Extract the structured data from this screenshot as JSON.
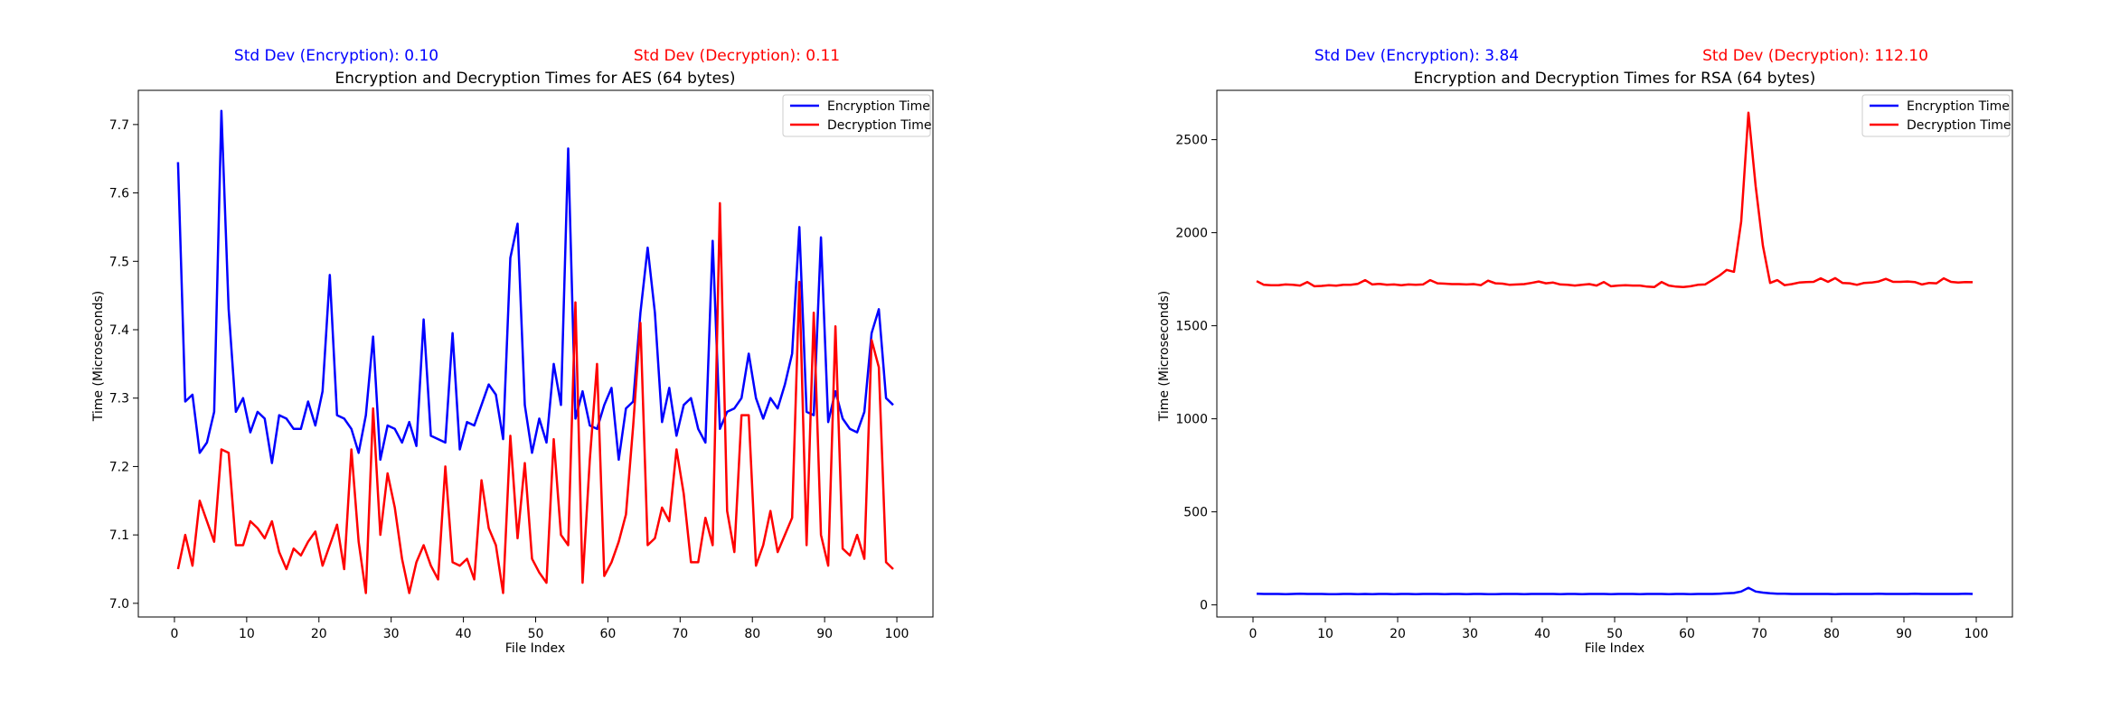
{
  "chart_data": [
    {
      "type": "line",
      "title": "Encryption and Decryption Times for AES (64 bytes)",
      "std_encryption": "Std Dev (Encryption): 0.10",
      "std_decryption": "Std Dev (Decryption): 0.11",
      "xlabel": "File Index",
      "ylabel": "Time (Microseconds)",
      "xlim": [
        -5,
        105
      ],
      "ylim": [
        6.98,
        7.75
      ],
      "xticks": [
        0,
        10,
        20,
        30,
        40,
        50,
        60,
        70,
        80,
        90,
        100
      ],
      "yticks": [
        7.0,
        7.1,
        7.2,
        7.3,
        7.4,
        7.5,
        7.6,
        7.7
      ],
      "ytick_decimals": 1,
      "legend": "upper right",
      "series": [
        {
          "name": "Encryption Time",
          "color": "#0000ff",
          "x": [
            0.5,
            1.5,
            2.5,
            3.5,
            4.5,
            5.5,
            6.5,
            7.5,
            8.5,
            9.5,
            10.5,
            11.5,
            12.5,
            13.5,
            14.5,
            15.5,
            16.5,
            17.5,
            18.5,
            19.5,
            20.5,
            21.5,
            22.5,
            23.5,
            24.5,
            25.5,
            26.5,
            27.5,
            28.5,
            29.5,
            30.5,
            31.5,
            32.5,
            33.5,
            34.5,
            35.5,
            36.5,
            37.5,
            38.5,
            39.5,
            40.5,
            41.5,
            42.5,
            43.5,
            44.5,
            45.5,
            46.5,
            47.5,
            48.5,
            49.5,
            50.5,
            51.5,
            52.5,
            53.5,
            54.5,
            55.5,
            56.5,
            57.5,
            58.5,
            59.5,
            60.5,
            61.5,
            62.5,
            63.5,
            64.5,
            65.5,
            66.5,
            67.5,
            68.5,
            69.5,
            70.5,
            71.5,
            72.5,
            73.5,
            74.5,
            75.5,
            76.5,
            77.5,
            78.5,
            79.5,
            80.5,
            81.5,
            82.5,
            83.5,
            84.5,
            85.5,
            86.5,
            87.5,
            88.5,
            89.5,
            90.5,
            91.5,
            92.5,
            93.5,
            94.5,
            95.5,
            96.5,
            97.5,
            98.5,
            99.5
          ],
          "values": [
            7.645,
            7.295,
            7.305,
            7.22,
            7.235,
            7.28,
            7.72,
            7.43,
            7.28,
            7.3,
            7.25,
            7.28,
            7.27,
            7.205,
            7.275,
            7.27,
            7.255,
            7.255,
            7.295,
            7.26,
            7.31,
            7.48,
            7.275,
            7.27,
            7.255,
            7.22,
            7.275,
            7.39,
            7.21,
            7.26,
            7.255,
            7.235,
            7.265,
            7.23,
            7.415,
            7.245,
            7.24,
            7.235,
            7.395,
            7.225,
            7.265,
            7.26,
            7.29,
            7.32,
            7.305,
            7.24,
            7.505,
            7.555,
            7.29,
            7.22,
            7.27,
            7.235,
            7.35,
            7.29,
            7.665,
            7.27,
            7.31,
            7.26,
            7.255,
            7.29,
            7.315,
            7.21,
            7.285,
            7.295,
            7.425,
            7.52,
            7.425,
            7.265,
            7.315,
            7.245,
            7.29,
            7.3,
            7.255,
            7.235,
            7.53,
            7.255,
            7.28,
            7.285,
            7.3,
            7.365,
            7.3,
            7.27,
            7.3,
            7.285,
            7.32,
            7.365,
            7.55,
            7.28,
            7.275,
            7.535,
            7.265,
            7.31,
            7.27,
            7.255,
            7.25,
            7.28,
            7.395,
            7.43,
            7.3,
            7.29
          ]
        },
        {
          "name": "Decryption Time",
          "color": "#ff0000",
          "x": [
            0.5,
            1.5,
            2.5,
            3.5,
            4.5,
            5.5,
            6.5,
            7.5,
            8.5,
            9.5,
            10.5,
            11.5,
            12.5,
            13.5,
            14.5,
            15.5,
            16.5,
            17.5,
            18.5,
            19.5,
            20.5,
            21.5,
            22.5,
            23.5,
            24.5,
            25.5,
            26.5,
            27.5,
            28.5,
            29.5,
            30.5,
            31.5,
            32.5,
            33.5,
            34.5,
            35.5,
            36.5,
            37.5,
            38.5,
            39.5,
            40.5,
            41.5,
            42.5,
            43.5,
            44.5,
            45.5,
            46.5,
            47.5,
            48.5,
            49.5,
            50.5,
            51.5,
            52.5,
            53.5,
            54.5,
            55.5,
            56.5,
            57.5,
            58.5,
            59.5,
            60.5,
            61.5,
            62.5,
            63.5,
            64.5,
            65.5,
            66.5,
            67.5,
            68.5,
            69.5,
            70.5,
            71.5,
            72.5,
            73.5,
            74.5,
            75.5,
            76.5,
            77.5,
            78.5,
            79.5,
            80.5,
            81.5,
            82.5,
            83.5,
            84.5,
            85.5,
            86.5,
            87.5,
            88.5,
            89.5,
            90.5,
            91.5,
            92.5,
            93.5,
            94.5,
            95.5,
            96.5,
            97.5,
            98.5,
            99.5
          ],
          "values": [
            7.05,
            7.1,
            7.055,
            7.15,
            7.12,
            7.09,
            7.225,
            7.22,
            7.085,
            7.085,
            7.12,
            7.11,
            7.095,
            7.12,
            7.075,
            7.05,
            7.08,
            7.07,
            7.09,
            7.105,
            7.055,
            7.085,
            7.115,
            7.05,
            7.225,
            7.09,
            7.015,
            7.285,
            7.1,
            7.19,
            7.14,
            7.065,
            7.015,
            7.06,
            7.085,
            7.055,
            7.035,
            7.2,
            7.06,
            7.055,
            7.065,
            7.035,
            7.18,
            7.11,
            7.085,
            7.015,
            7.245,
            7.095,
            7.205,
            7.065,
            7.045,
            7.03,
            7.24,
            7.1,
            7.085,
            7.44,
            7.03,
            7.21,
            7.35,
            7.04,
            7.06,
            7.09,
            7.13,
            7.26,
            7.41,
            7.085,
            7.095,
            7.14,
            7.12,
            7.225,
            7.16,
            7.06,
            7.06,
            7.125,
            7.085,
            7.585,
            7.135,
            7.075,
            7.275,
            7.275,
            7.055,
            7.085,
            7.135,
            7.075,
            7.1,
            7.125,
            7.47,
            7.085,
            7.425,
            7.1,
            7.055,
            7.405,
            7.08,
            7.07,
            7.1,
            7.065,
            7.385,
            7.345,
            7.06,
            7.05
          ]
        }
      ]
    },
    {
      "type": "line",
      "title": "Encryption and Decryption Times for RSA (64 bytes)",
      "std_encryption": "Std Dev (Encryption): 3.84",
      "std_decryption": "Std Dev (Decryption): 112.10",
      "xlabel": "File Index",
      "ylabel": "Time (Microseconds)",
      "xlim": [
        -5,
        105
      ],
      "ylim": [
        -65,
        2765
      ],
      "xticks": [
        0,
        10,
        20,
        30,
        40,
        50,
        60,
        70,
        80,
        90,
        100
      ],
      "yticks": [
        0,
        500,
        1000,
        1500,
        2000,
        2500
      ],
      "ytick_decimals": 0,
      "legend": "upper right",
      "series": [
        {
          "name": "Encryption Time",
          "color": "#0000ff",
          "x": [
            0.5,
            1.5,
            2.5,
            3.5,
            4.5,
            5.5,
            6.5,
            7.5,
            8.5,
            9.5,
            10.5,
            11.5,
            12.5,
            13.5,
            14.5,
            15.5,
            16.5,
            17.5,
            18.5,
            19.5,
            20.5,
            21.5,
            22.5,
            23.5,
            24.5,
            25.5,
            26.5,
            27.5,
            28.5,
            29.5,
            30.5,
            31.5,
            32.5,
            33.5,
            34.5,
            35.5,
            36.5,
            37.5,
            38.5,
            39.5,
            40.5,
            41.5,
            42.5,
            43.5,
            44.5,
            45.5,
            46.5,
            47.5,
            48.5,
            49.5,
            50.5,
            51.5,
            52.5,
            53.5,
            54.5,
            55.5,
            56.5,
            57.5,
            58.5,
            59.5,
            60.5,
            61.5,
            62.5,
            63.5,
            64.5,
            65.5,
            66.5,
            67.5,
            68.5,
            69.5,
            70.5,
            71.5,
            72.5,
            73.5,
            74.5,
            75.5,
            76.5,
            77.5,
            78.5,
            79.5,
            80.5,
            81.5,
            82.5,
            83.5,
            84.5,
            85.5,
            86.5,
            87.5,
            88.5,
            89.5,
            90.5,
            91.5,
            92.5,
            93.5,
            94.5,
            95.5,
            96.5,
            97.5,
            98.5,
            99.5
          ],
          "values": [
            60,
            59,
            59,
            59,
            58,
            59,
            60,
            59,
            59,
            59,
            58,
            58,
            59,
            59,
            58,
            59,
            58,
            59,
            59,
            58,
            59,
            59,
            58,
            59,
            59,
            59,
            58,
            59,
            59,
            58,
            59,
            59,
            58,
            58,
            59,
            59,
            59,
            58,
            59,
            59,
            59,
            59,
            58,
            59,
            59,
            58,
            59,
            59,
            59,
            58,
            59,
            59,
            59,
            58,
            59,
            59,
            59,
            58,
            59,
            59,
            58,
            59,
            59,
            59,
            60,
            62,
            64,
            72,
            92,
            72,
            66,
            62,
            60,
            60,
            59,
            59,
            59,
            59,
            59,
            59,
            58,
            59,
            59,
            59,
            59,
            59,
            60,
            59,
            59,
            59,
            59,
            60,
            59,
            59,
            59,
            59,
            59,
            59,
            60,
            59
          ]
        },
        {
          "name": "Decryption Time",
          "color": "#ff0000",
          "x": [
            0.5,
            1.5,
            2.5,
            3.5,
            4.5,
            5.5,
            6.5,
            7.5,
            8.5,
            9.5,
            10.5,
            11.5,
            12.5,
            13.5,
            14.5,
            15.5,
            16.5,
            17.5,
            18.5,
            19.5,
            20.5,
            21.5,
            22.5,
            23.5,
            24.5,
            25.5,
            26.5,
            27.5,
            28.5,
            29.5,
            30.5,
            31.5,
            32.5,
            33.5,
            34.5,
            35.5,
            36.5,
            37.5,
            38.5,
            39.5,
            40.5,
            41.5,
            42.5,
            43.5,
            44.5,
            45.5,
            46.5,
            47.5,
            48.5,
            49.5,
            50.5,
            51.5,
            52.5,
            53.5,
            54.5,
            55.5,
            56.5,
            57.5,
            58.5,
            59.5,
            60.5,
            61.5,
            62.5,
            63.5,
            64.5,
            65.5,
            66.5,
            67.5,
            68.5,
            69.5,
            70.5,
            71.5,
            72.5,
            73.5,
            74.5,
            75.5,
            76.5,
            77.5,
            78.5,
            79.5,
            80.5,
            81.5,
            82.5,
            83.5,
            84.5,
            85.5,
            86.5,
            87.5,
            88.5,
            89.5,
            90.5,
            91.5,
            92.5,
            93.5,
            94.5,
            95.5,
            96.5,
            97.5,
            98.5,
            99.5
          ],
          "values": [
            1740,
            1720,
            1718,
            1718,
            1722,
            1720,
            1716,
            1735,
            1712,
            1714,
            1718,
            1715,
            1720,
            1720,
            1725,
            1745,
            1722,
            1725,
            1720,
            1722,
            1718,
            1722,
            1720,
            1722,
            1745,
            1728,
            1726,
            1724,
            1724,
            1722,
            1724,
            1718,
            1742,
            1728,
            1726,
            1720,
            1722,
            1724,
            1730,
            1738,
            1728,
            1732,
            1722,
            1720,
            1716,
            1720,
            1724,
            1716,
            1735,
            1712,
            1716,
            1718,
            1716,
            1716,
            1710,
            1708,
            1735,
            1716,
            1710,
            1708,
            1712,
            1720,
            1722,
            1745,
            1770,
            1800,
            1790,
            2060,
            2645,
            2250,
            1930,
            1730,
            1745,
            1718,
            1724,
            1732,
            1735,
            1736,
            1755,
            1736,
            1756,
            1730,
            1728,
            1720,
            1730,
            1732,
            1738,
            1752,
            1736,
            1736,
            1738,
            1735,
            1722,
            1730,
            1728,
            1755,
            1736,
            1732,
            1735,
            1734
          ]
        }
      ]
    }
  ]
}
